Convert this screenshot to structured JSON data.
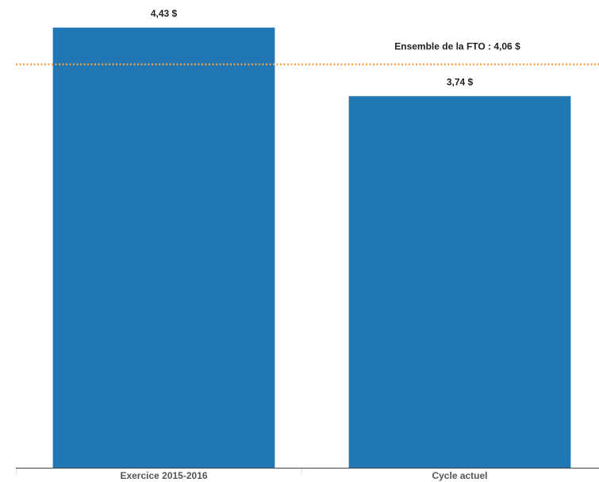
{
  "chart_data": {
    "type": "bar",
    "categories": [
      "Exercice 2015-2016",
      "Cycle actuel"
    ],
    "values": [
      4.43,
      3.74
    ],
    "value_labels": [
      "4,43 $",
      "3,74 $"
    ],
    "color": "#2077b4",
    "ylim": [
      0,
      4.5
    ],
    "reference": {
      "label": "Ensemble de la FTO : 4,06 $",
      "value": 4.06,
      "color": "#f0a04b"
    }
  }
}
